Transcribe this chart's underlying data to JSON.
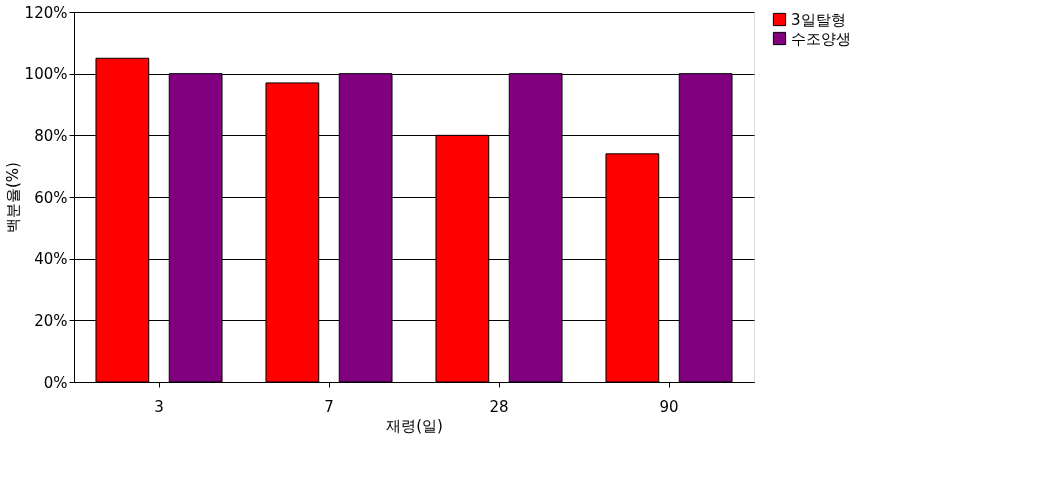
{
  "chart_data": {
    "type": "bar",
    "xlabel": "재령(일)",
    "ylabel": "백분율(%)",
    "categories": [
      "3",
      "7",
      "28",
      "90"
    ],
    "series": [
      {
        "name": "3일탈형",
        "color": "#ff0000",
        "values": [
          105,
          97,
          80,
          74
        ]
      },
      {
        "name": "수조양생",
        "color": "#800080",
        "values": [
          100,
          100,
          100,
          100
        ]
      }
    ],
    "ylim": [
      0,
      120
    ],
    "yticks": [
      {
        "value": 0,
        "label": "0%"
      },
      {
        "value": 20,
        "label": "20%"
      },
      {
        "value": 40,
        "label": "40%"
      },
      {
        "value": 60,
        "label": "60%"
      },
      {
        "value": 80,
        "label": "80%"
      },
      {
        "value": 100,
        "label": "100%"
      },
      {
        "value": 120,
        "label": "120%"
      }
    ],
    "grid": "y",
    "legend": "right"
  }
}
